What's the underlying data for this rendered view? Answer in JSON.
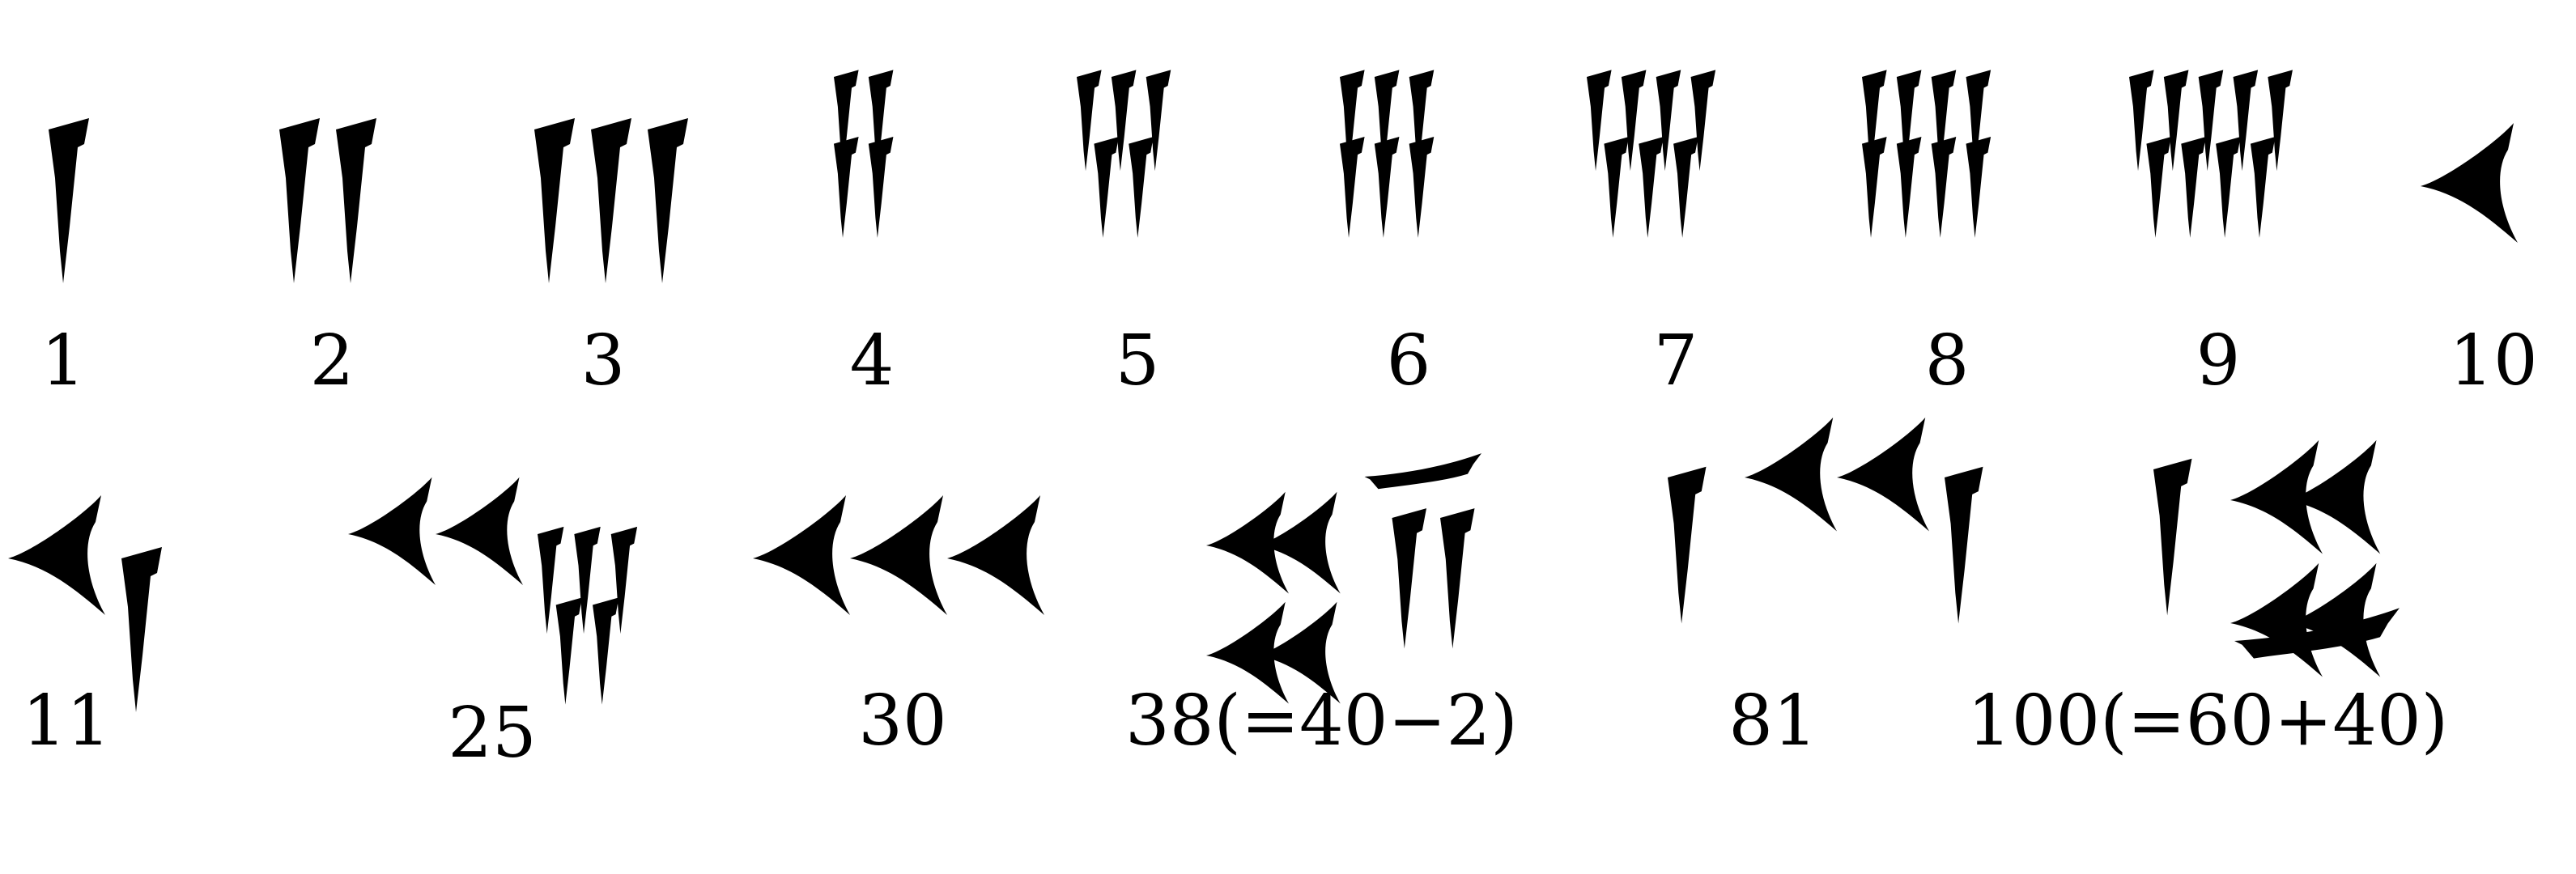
{
  "rows": [
    {
      "items": [
        {
          "label": "1",
          "numeral": [
            {
              "v": 1
            }
          ]
        },
        {
          "label": "2",
          "numeral": [
            {
              "v": 2
            }
          ]
        },
        {
          "label": "3",
          "numeral": [
            {
              "v": 3
            }
          ]
        },
        {
          "label": "4",
          "numeral": [
            {
              "v": 4
            }
          ]
        },
        {
          "label": "5",
          "numeral": [
            {
              "v": 5
            }
          ]
        },
        {
          "label": "6",
          "numeral": [
            {
              "v": 6
            }
          ]
        },
        {
          "label": "7",
          "numeral": [
            {
              "v": 7
            }
          ]
        },
        {
          "label": "8",
          "numeral": [
            {
              "v": 8
            }
          ]
        },
        {
          "label": "9",
          "numeral": [
            {
              "v": 9
            }
          ]
        },
        {
          "label": "10",
          "numeral": [
            {
              "t": 1
            }
          ]
        }
      ]
    },
    {
      "items": [
        {
          "label": "11",
          "numeral": [
            {
              "t": 1
            },
            {
              "v": 1
            }
          ]
        },
        {
          "label": "25",
          "numeral": [
            {
              "t": 2
            },
            {
              "v": 5
            }
          ]
        },
        {
          "label": "30",
          "numeral": [
            {
              "t": 3
            }
          ]
        },
        {
          "label": "38(=40−2)",
          "numeral": [
            {
              "t": 4
            },
            {
              "s": "subtract"
            },
            {
              "v": 2
            }
          ]
        },
        {
          "label": "81",
          "numeral": [
            {
              "v": 1
            },
            {
              "t": 2
            },
            {
              "v": 1
            }
          ]
        },
        {
          "label": "100(=60+40)",
          "numeral": [
            {
              "v": 1
            },
            {
              "t": 4
            }
          ]
        }
      ]
    }
  ]
}
